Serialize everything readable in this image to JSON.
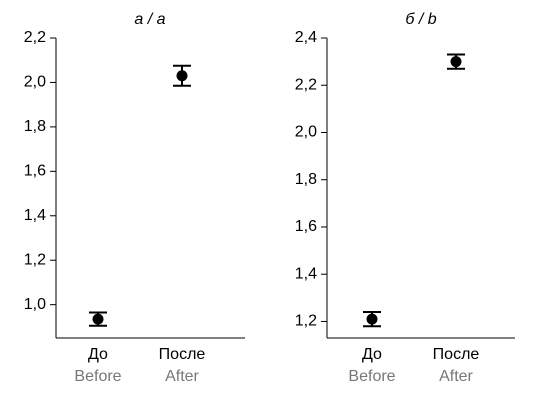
{
  "chart_data": [
    {
      "type": "errorbar",
      "title": "а / a",
      "categories": [
        "До",
        "После"
      ],
      "categories_en": [
        "Before",
        "After"
      ],
      "values": [
        0.935,
        2.03
      ],
      "errors": [
        0.03,
        0.045
      ],
      "color": "#000000",
      "ylim": [
        0.85,
        2.2
      ],
      "yticks": [
        {
          "value": 1.0,
          "label": "1,0"
        },
        {
          "value": 1.2,
          "label": "1,2"
        },
        {
          "value": 1.4,
          "label": "1,4"
        },
        {
          "value": 1.6,
          "label": "1,6"
        },
        {
          "value": 1.8,
          "label": "1,8"
        },
        {
          "value": 2.0,
          "label": "2,0"
        },
        {
          "value": 2.2,
          "label": "2,2"
        }
      ]
    },
    {
      "type": "errorbar",
      "title": "б / b",
      "categories": [
        "До",
        "После"
      ],
      "categories_en": [
        "Before",
        "After"
      ],
      "values": [
        1.21,
        2.3
      ],
      "errors": [
        0.03,
        0.03
      ],
      "color": "#000000",
      "ylim": [
        1.13,
        2.4
      ],
      "yticks": [
        {
          "value": 1.2,
          "label": "1,2"
        },
        {
          "value": 1.4,
          "label": "1,4"
        },
        {
          "value": 1.6,
          "label": "1,6"
        },
        {
          "value": 1.8,
          "label": "1,8"
        },
        {
          "value": 2.0,
          "label": "2,0"
        },
        {
          "value": 2.2,
          "label": "2,2"
        },
        {
          "value": 2.4,
          "label": "2,4"
        }
      ]
    }
  ]
}
